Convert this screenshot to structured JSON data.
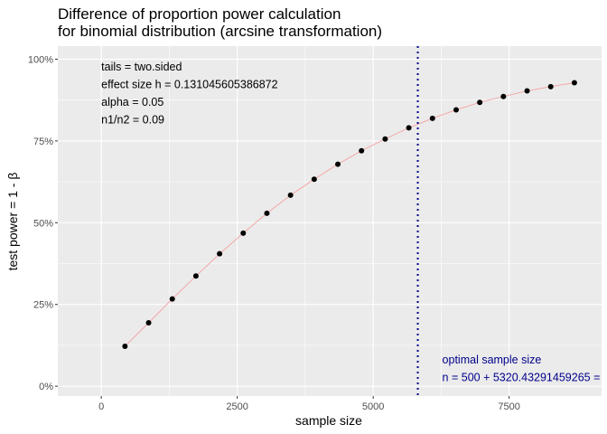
{
  "chart_data": {
    "type": "scatter",
    "title": [
      "Difference of proportion power calculation",
      "for binomial distribution (arcsine transformation)"
    ],
    "xlabel": "sample size",
    "ylabel": "test power = 1 - β",
    "xlim": [
      -800,
      9200
    ],
    "ylim": [
      -0.03,
      1.04
    ],
    "x_ticks": [
      0,
      2500,
      5000,
      7500
    ],
    "x_tick_labels": [
      "0",
      "2500",
      "5000",
      "7500"
    ],
    "y_ticks": [
      0,
      0.25,
      0.5,
      0.75,
      1.0
    ],
    "y_tick_labels": [
      "0%",
      "25%",
      "50%",
      "75%",
      "100%"
    ],
    "grid": true,
    "series": [
      {
        "x": [
          435,
          870,
          1305,
          1740,
          2175,
          2610,
          3045,
          3480,
          3915,
          4350,
          4785,
          5220,
          5655,
          6090,
          6525,
          6960,
          7395,
          7830,
          8265,
          8700
        ],
        "y": [
          0.122,
          0.194,
          0.267,
          0.337,
          0.405,
          0.468,
          0.529,
          0.584,
          0.633,
          0.679,
          0.72,
          0.756,
          0.79,
          0.819,
          0.845,
          0.868,
          0.886,
          0.903,
          0.916,
          0.928
        ]
      }
    ],
    "vline_x": 5820.4,
    "annotations": [
      "tails = two.sided",
      "effect size h = 0.131045605386872",
      "alpha = 0.05",
      "n1/n2 =  0.09"
    ],
    "optimal_annotation": [
      "optimal sample size",
      "n = 500 + 5320.43291459265 ="
    ]
  },
  "colors": {
    "panel_bg": "#ebebeb",
    "grid": "#ffffff",
    "line": "#f4a8a8",
    "point": "#000000",
    "vline": "#00008b",
    "annotation_blue": "#00008b"
  }
}
